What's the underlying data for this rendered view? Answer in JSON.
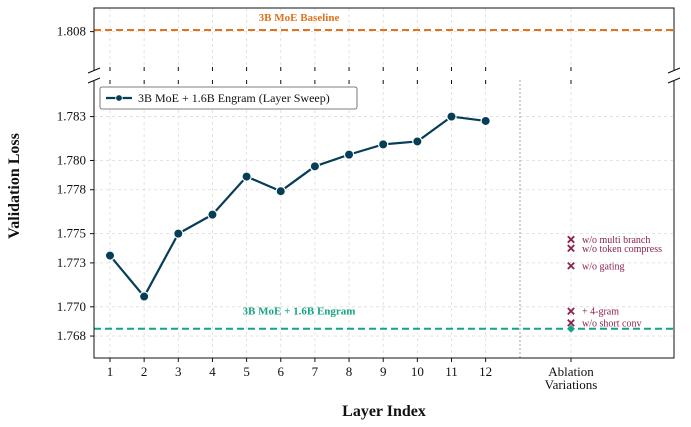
{
  "chart_data": {
    "type": "line",
    "xlabel": "Layer Index",
    "ylabel": "Validation Loss",
    "categories": [
      "1",
      "2",
      "3",
      "4",
      "5",
      "6",
      "7",
      "8",
      "9",
      "10",
      "11",
      "12"
    ],
    "yticks": [
      "1.768",
      "1.770",
      "1.773",
      "1.775",
      "1.778",
      "1.780",
      "1.783"
    ],
    "top_panel_ytick": "1.808",
    "ablation_tick": [
      "Ablation",
      "Variations"
    ],
    "ylim_main": [
      1.7665,
      1.7855
    ],
    "ylim_top": [
      1.8055,
      1.8095
    ],
    "grid": true,
    "legend_position": "top-left",
    "series": [
      {
        "name": "3B MoE + 1.6B Engram (Layer Sweep)",
        "color": "#063d57",
        "x": [
          1,
          2,
          3,
          4,
          5,
          6,
          7,
          8,
          9,
          10,
          11,
          12
        ],
        "values": [
          1.7735,
          1.7707,
          1.775,
          1.7763,
          1.7789,
          1.7779,
          1.7796,
          1.7804,
          1.7811,
          1.7813,
          1.783,
          1.7827
        ]
      }
    ],
    "baseline": {
      "label": "3B MoE Baseline",
      "value": 1.8081,
      "color": "#e0731c"
    },
    "engram_reference": {
      "label": "3B MoE + 1.6B Engram",
      "value": 1.7685,
      "color": "#17a386"
    },
    "ablations": {
      "color": "#8b2252",
      "points": [
        {
          "label": "w/o multi branch",
          "value": 1.7746
        },
        {
          "label": "w/o token compress",
          "value": 1.774
        },
        {
          "label": "w/o gating",
          "value": 1.7728
        },
        {
          "label": "+ 4-gram",
          "value": 1.7697
        },
        {
          "label": "w/o short conv",
          "value": 1.7689
        }
      ]
    }
  }
}
